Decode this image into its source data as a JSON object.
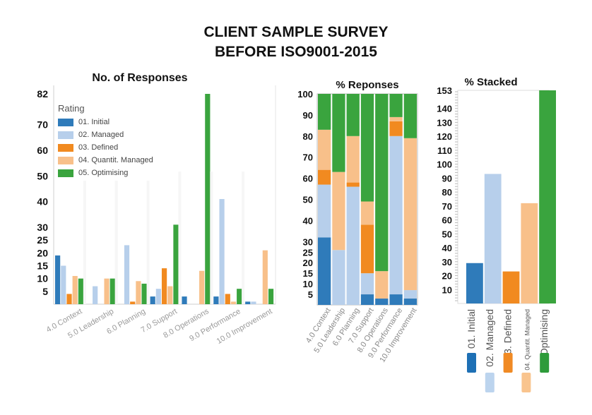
{
  "header": {
    "line1": "CLIENT SAMPLE SURVEY",
    "line2": "BEFORE ISO9001-2015"
  },
  "colors": {
    "initial": "#2f7bba",
    "managed": "#b7cfeb",
    "defined": "#f18a20",
    "quantit": "#f8c08a",
    "optimising": "#3aa43e"
  },
  "legend": {
    "title": "Rating",
    "items": [
      {
        "label": "01. Initial",
        "color": "#2f7bba"
      },
      {
        "label": "02. Managed",
        "color": "#b7cfeb"
      },
      {
        "label": "03. Defined",
        "color": "#f18a20"
      },
      {
        "label": "04. Quantit. Managed",
        "color": "#f8c08a"
      },
      {
        "label": "05. Optimising",
        "color": "#3aa43e"
      }
    ]
  },
  "chart_data": [
    {
      "type": "bar",
      "title": "No. of Responses",
      "categories": [
        "4.0 Context",
        "5.0 Leadership",
        "6.0 Planning",
        "7.0 Support",
        "8.0 Operations",
        "9.0 Performance",
        "10.0 Improvement"
      ],
      "series": [
        {
          "name": "01. Initial",
          "values": [
            19,
            0,
            0,
            3,
            3,
            3,
            1
          ]
        },
        {
          "name": "02. Managed",
          "values": [
            15,
            7,
            23,
            6,
            0,
            41,
            1
          ]
        },
        {
          "name": "03. Defined",
          "values": [
            4,
            0,
            1,
            14,
            0,
            4,
            0
          ]
        },
        {
          "name": "04. Quantit. Managed",
          "values": [
            11,
            10,
            9,
            7,
            13,
            1,
            21
          ]
        },
        {
          "name": "05. Optimising",
          "values": [
            10,
            10,
            8,
            31,
            82,
            6,
            6
          ]
        }
      ],
      "yticks": [
        5,
        10,
        15,
        20,
        25,
        30,
        40,
        50,
        60,
        70,
        82
      ],
      "ylim": [
        0,
        82
      ]
    },
    {
      "type": "bar",
      "stacked": true,
      "title": "% Reponses",
      "categories": [
        "4.0 Context",
        "5.0 Leadership",
        "6.0 Planning",
        "7.0 Support",
        "8.0 Operations",
        "9.0 Performance",
        "10.0 Improvement"
      ],
      "series": [
        {
          "name": "01. Initial",
          "values": [
            32,
            0,
            0,
            5,
            3,
            5,
            3
          ]
        },
        {
          "name": "02. Managed",
          "values": [
            25,
            26,
            56,
            10,
            0,
            75,
            4
          ]
        },
        {
          "name": "03. Defined",
          "values": [
            7,
            0,
            2,
            23,
            0,
            7,
            0
          ]
        },
        {
          "name": "04. Quantit. Managed",
          "values": [
            19,
            37,
            22,
            11,
            13,
            2,
            72
          ]
        },
        {
          "name": "05. Optimising",
          "values": [
            17,
            37,
            20,
            51,
            84,
            11,
            21
          ]
        }
      ],
      "yticks": [
        5,
        10,
        15,
        20,
        25,
        30,
        40,
        50,
        60,
        70,
        80,
        90,
        100
      ],
      "ylim": [
        0,
        100
      ]
    },
    {
      "type": "bar",
      "title": "% Stacked",
      "categories": [
        "01. Initial",
        "02. Managed",
        "03. Defined",
        "04. Quantit. Managed",
        "05. Optimising"
      ],
      "values": [
        29,
        93,
        23,
        72,
        153
      ],
      "yticks": [
        10,
        20,
        30,
        40,
        50,
        60,
        70,
        80,
        90,
        100,
        110,
        120,
        130,
        140,
        153
      ],
      "ylim": [
        0,
        153
      ]
    }
  ]
}
